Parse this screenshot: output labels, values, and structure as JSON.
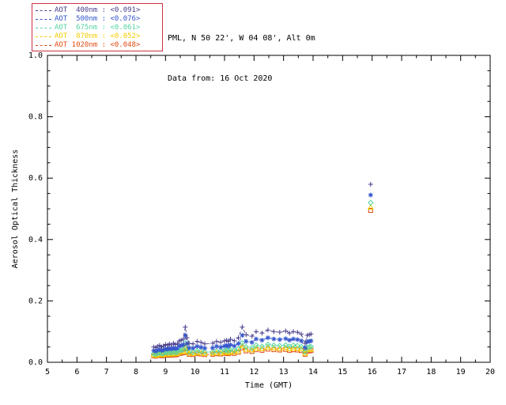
{
  "header": {
    "line1": "PML, N 50 22', W 04 08', Alt 0m",
    "line2": "Data from: 16 Oct 2020"
  },
  "legend": {
    "border_color": "#cc3344",
    "items": [
      {
        "wavelength": "400nm",
        "label": "AOT  400nm",
        "value": "<0.091>",
        "color": "#483d8b"
      },
      {
        "wavelength": "500nm",
        "label": "AOT  500nm",
        "value": "<0.076>",
        "color": "#3355cc"
      },
      {
        "wavelength": "675nm",
        "label": "AOT  675nm",
        "value": "<0.061>",
        "color": "#55d5a0"
      },
      {
        "wavelength": "870nm",
        "label": "AOT  870nm",
        "value": "<0.052>",
        "color": "#f2cc00"
      },
      {
        "wavelength": "1020nm",
        "label": "AOT 1020nm",
        "value": "<0.048>",
        "color": "#e04a10"
      }
    ]
  },
  "chart_data": {
    "type": "scatter",
    "title": "",
    "xlabel": "Time (GMT)",
    "ylabel": "Aerosol Optical Thickness",
    "xlim": [
      5,
      20
    ],
    "ylim": [
      0.0,
      1.0
    ],
    "xticks": [
      5,
      6,
      7,
      8,
      9,
      10,
      11,
      12,
      13,
      14,
      15,
      16,
      17,
      18,
      19,
      20
    ],
    "yticks": [
      0.0,
      0.2,
      0.4,
      0.6,
      0.8,
      1.0
    ],
    "grid": false,
    "legend_position": "top-left",
    "x": [
      8.6,
      8.67,
      8.73,
      8.8,
      8.87,
      8.93,
      9.0,
      9.07,
      9.13,
      9.2,
      9.27,
      9.33,
      9.4,
      9.47,
      9.53,
      9.6,
      9.67,
      9.73,
      9.8,
      9.93,
      10.07,
      10.2,
      10.33,
      10.6,
      10.73,
      10.87,
      11.0,
      11.07,
      11.13,
      11.2,
      11.33,
      11.47,
      11.6,
      11.73,
      11.93,
      12.07,
      12.27,
      12.47,
      12.67,
      12.87,
      13.07,
      13.2,
      13.33,
      13.47,
      13.6,
      13.73,
      13.8,
      13.87,
      13.93,
      15.95
    ],
    "series": [
      {
        "name": "AOT 400nm",
        "wavelength": "400nm",
        "marker": "plus",
        "color": "#483d8b",
        "mean": 0.091,
        "values": [
          0.05,
          0.048,
          0.052,
          0.055,
          0.05,
          0.053,
          0.058,
          0.055,
          0.06,
          0.057,
          0.062,
          0.058,
          0.06,
          0.07,
          0.072,
          0.075,
          0.115,
          0.08,
          0.062,
          0.06,
          0.068,
          0.065,
          0.06,
          0.062,
          0.068,
          0.065,
          0.07,
          0.072,
          0.068,
          0.075,
          0.07,
          0.08,
          0.115,
          0.09,
          0.085,
          0.1,
          0.095,
          0.105,
          0.1,
          0.098,
          0.102,
          0.095,
          0.1,
          0.098,
          0.092,
          0.062,
          0.088,
          0.09,
          0.092,
          0.58
        ]
      },
      {
        "name": "AOT 500nm",
        "wavelength": "500nm",
        "marker": "asterisk",
        "color": "#3355cc",
        "mean": 0.076,
        "values": [
          0.038,
          0.036,
          0.039,
          0.042,
          0.038,
          0.04,
          0.044,
          0.042,
          0.046,
          0.043,
          0.047,
          0.044,
          0.046,
          0.053,
          0.055,
          0.057,
          0.088,
          0.061,
          0.047,
          0.046,
          0.052,
          0.049,
          0.046,
          0.047,
          0.052,
          0.049,
          0.053,
          0.055,
          0.052,
          0.057,
          0.053,
          0.061,
          0.088,
          0.068,
          0.065,
          0.076,
          0.072,
          0.08,
          0.076,
          0.074,
          0.077,
          0.072,
          0.076,
          0.074,
          0.07,
          0.047,
          0.067,
          0.068,
          0.07,
          0.545
        ]
      },
      {
        "name": "AOT 675nm",
        "wavelength": "675nm",
        "marker": "diamond",
        "color": "#55d5a0",
        "mean": 0.061,
        "values": [
          0.028,
          0.026,
          0.029,
          0.031,
          0.028,
          0.029,
          0.032,
          0.031,
          0.033,
          0.031,
          0.034,
          0.032,
          0.033,
          0.039,
          0.04,
          0.041,
          0.063,
          0.044,
          0.034,
          0.033,
          0.037,
          0.036,
          0.033,
          0.034,
          0.037,
          0.036,
          0.039,
          0.04,
          0.037,
          0.041,
          0.039,
          0.044,
          0.063,
          0.05,
          0.047,
          0.055,
          0.052,
          0.058,
          0.055,
          0.054,
          0.056,
          0.052,
          0.055,
          0.054,
          0.051,
          0.034,
          0.048,
          0.05,
          0.051,
          0.52
        ]
      },
      {
        "name": "AOT 870nm",
        "wavelength": "870nm",
        "marker": "triangle",
        "color": "#f2cc00",
        "mean": 0.052,
        "values": [
          0.024,
          0.022,
          0.025,
          0.026,
          0.024,
          0.025,
          0.027,
          0.026,
          0.028,
          0.026,
          0.029,
          0.027,
          0.028,
          0.033,
          0.034,
          0.035,
          0.053,
          0.037,
          0.029,
          0.028,
          0.031,
          0.03,
          0.028,
          0.029,
          0.031,
          0.03,
          0.033,
          0.034,
          0.031,
          0.035,
          0.033,
          0.037,
          0.053,
          0.042,
          0.04,
          0.046,
          0.044,
          0.049,
          0.046,
          0.045,
          0.047,
          0.044,
          0.046,
          0.045,
          0.043,
          0.029,
          0.041,
          0.042,
          0.043,
          0.505
        ]
      },
      {
        "name": "AOT 1020nm",
        "wavelength": "1020nm",
        "marker": "square",
        "color": "#e04a10",
        "mean": 0.048,
        "values": [
          0.021,
          0.02,
          0.022,
          0.023,
          0.021,
          0.022,
          0.024,
          0.023,
          0.025,
          0.023,
          0.026,
          0.024,
          0.025,
          0.029,
          0.03,
          0.031,
          0.047,
          0.033,
          0.026,
          0.025,
          0.028,
          0.027,
          0.025,
          0.026,
          0.028,
          0.027,
          0.029,
          0.03,
          0.028,
          0.031,
          0.029,
          0.033,
          0.047,
          0.037,
          0.035,
          0.041,
          0.039,
          0.043,
          0.041,
          0.04,
          0.042,
          0.039,
          0.041,
          0.04,
          0.038,
          0.026,
          0.036,
          0.037,
          0.038,
          0.495
        ]
      }
    ]
  }
}
